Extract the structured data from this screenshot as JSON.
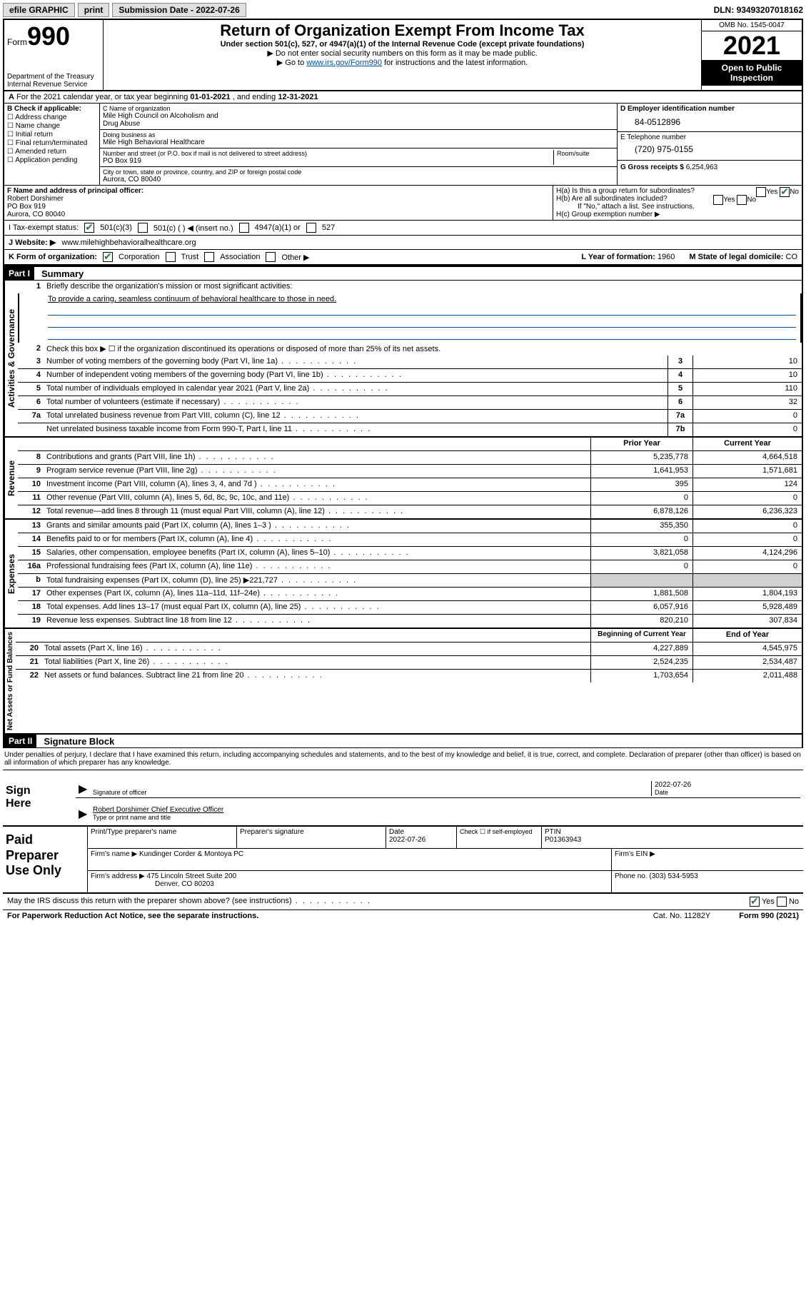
{
  "topbar": {
    "efile": "efile GRAPHIC",
    "print": "print",
    "sub_label": "Submission Date - ",
    "sub_date": "2022-07-26",
    "dln_label": "DLN: ",
    "dln": "93493207018162"
  },
  "header": {
    "form_word": "Form",
    "form_num": "990",
    "dept": "Department of the Treasury",
    "irs": "Internal Revenue Service",
    "title": "Return of Organization Exempt From Income Tax",
    "subtitle": "Under section 501(c), 527, or 4947(a)(1) of the Internal Revenue Code (except private foundations)",
    "note1": "▶ Do not enter social security numbers on this form as it may be made public.",
    "note2_a": "▶ Go to ",
    "note2_link": "www.irs.gov/Form990",
    "note2_b": " for instructions and the latest information.",
    "omb": "OMB No. 1545-0047",
    "year": "2021",
    "otp": "Open to Public Inspection"
  },
  "line_a": {
    "text_a": "For the 2021 calendar year, or tax year beginning ",
    "begin": "01-01-2021",
    "text_b": " , and ending ",
    "end": "12-31-2021"
  },
  "col_b": {
    "label": "B Check if applicable:",
    "items": [
      "Address change",
      "Name change",
      "Initial return",
      "Final return/terminated",
      "Amended return",
      "Application pending"
    ]
  },
  "col_c": {
    "name_lbl": "C Name of organization",
    "name1": "Mile High Council on Alcoholism and",
    "name2": "Drug Abuse",
    "dba_lbl": "Doing business as",
    "dba": "Mile High Behavioral Healthcare",
    "addr_lbl": "Number and street (or P.O. box if mail is not delivered to street address)",
    "rs_lbl": "Room/suite",
    "addr": "PO Box 919",
    "city_lbl": "City or town, state or province, country, and ZIP or foreign postal code",
    "city": "Aurora, CO  80040"
  },
  "col_d": {
    "ein_lbl": "D Employer identification number",
    "ein": "84-0512896",
    "tel_lbl": "E Telephone number",
    "tel": "(720) 975-0155",
    "gr_lbl": "G Gross receipts $ ",
    "gr": "6,254,963"
  },
  "col_f": {
    "lbl": "F Name and address of principal officer:",
    "name": "Robert Dorshimer",
    "addr1": "PO Box 919",
    "addr2": "Aurora, CO  80040"
  },
  "col_h": {
    "ha": "H(a)  Is this a group return for subordinates?",
    "hb": "H(b)  Are all subordinates included?",
    "hb_note": "If \"No,\" attach a list. See instructions.",
    "hc": "H(c)  Group exemption number ▶",
    "yes": "Yes",
    "no": "No"
  },
  "line_i": {
    "lbl": "I     Tax-exempt status:",
    "opt1": "501(c)(3)",
    "opt2": "501(c) (  ) ◀ (insert no.)",
    "opt3": "4947(a)(1) or",
    "opt4": "527"
  },
  "line_j": {
    "lbl": "J    Website: ▶ ",
    "val": "www.milehighbehavioralhealthcare.org"
  },
  "line_k": {
    "lbl": "K Form of organization:",
    "opts": [
      "Corporation",
      "Trust",
      "Association",
      "Other ▶"
    ],
    "l_lbl": "L Year of formation: ",
    "l_val": "1960",
    "m_lbl": "M State of legal domicile: ",
    "m_val": "CO"
  },
  "part1": {
    "hdr": "Part I",
    "title": "Summary",
    "vlabels": [
      "Activities & Governance",
      "Revenue",
      "Expenses",
      "Net Assets or Fund Balances"
    ],
    "line1_lbl": "Briefly describe the organization's mission or most significant activities:",
    "mission": "To provide a caring, seamless continuum of behavioral healthcare to those in need.",
    "line2": "Check this box ▶ ☐  if the organization discontinued its operations or disposed of more than 25% of its net assets.",
    "rows_gov": [
      {
        "n": "3",
        "d": "Number of voting members of the governing body (Part VI, line 1a)",
        "b": "3",
        "v": "10"
      },
      {
        "n": "4",
        "d": "Number of independent voting members of the governing body (Part VI, line 1b)",
        "b": "4",
        "v": "10"
      },
      {
        "n": "5",
        "d": "Total number of individuals employed in calendar year 2021 (Part V, line 2a)",
        "b": "5",
        "v": "110"
      },
      {
        "n": "6",
        "d": "Total number of volunteers (estimate if necessary)",
        "b": "6",
        "v": "32"
      },
      {
        "n": "7a",
        "d": "Total unrelated business revenue from Part VIII, column (C), line 12",
        "b": "7a",
        "v": "0"
      },
      {
        "n": "",
        "d": "Net unrelated business taxable income from Form 990-T, Part I, line 11",
        "b": "7b",
        "v": "0"
      }
    ],
    "col_hdr_prior": "Prior Year",
    "col_hdr_curr": "Current Year",
    "rows_rev": [
      {
        "n": "8",
        "d": "Contributions and grants (Part VIII, line 1h)",
        "p": "5,235,778",
        "c": "4,664,518"
      },
      {
        "n": "9",
        "d": "Program service revenue (Part VIII, line 2g)",
        "p": "1,641,953",
        "c": "1,571,681"
      },
      {
        "n": "10",
        "d": "Investment income (Part VIII, column (A), lines 3, 4, and 7d )",
        "p": "395",
        "c": "124"
      },
      {
        "n": "11",
        "d": "Other revenue (Part VIII, column (A), lines 5, 6d, 8c, 9c, 10c, and 11e)",
        "p": "0",
        "c": "0"
      },
      {
        "n": "12",
        "d": "Total revenue—add lines 8 through 11 (must equal Part VIII, column (A), line 12)",
        "p": "6,878,126",
        "c": "6,236,323"
      }
    ],
    "rows_exp": [
      {
        "n": "13",
        "d": "Grants and similar amounts paid (Part IX, column (A), lines 1–3 )",
        "p": "355,350",
        "c": "0"
      },
      {
        "n": "14",
        "d": "Benefits paid to or for members (Part IX, column (A), line 4)",
        "p": "0",
        "c": "0"
      },
      {
        "n": "15",
        "d": "Salaries, other compensation, employee benefits (Part IX, column (A), lines 5–10)",
        "p": "3,821,058",
        "c": "4,124,296"
      },
      {
        "n": "16a",
        "d": "Professional fundraising fees (Part IX, column (A), line 11e)",
        "p": "0",
        "c": "0"
      },
      {
        "n": "b",
        "d": "Total fundraising expenses (Part IX, column (D), line 25) ▶221,727",
        "p": "",
        "c": "",
        "shade": true
      },
      {
        "n": "17",
        "d": "Other expenses (Part IX, column (A), lines 11a–11d, 11f–24e)",
        "p": "1,881,508",
        "c": "1,804,193"
      },
      {
        "n": "18",
        "d": "Total expenses. Add lines 13–17 (must equal Part IX, column (A), line 25)",
        "p": "6,057,916",
        "c": "5,928,489"
      },
      {
        "n": "19",
        "d": "Revenue less expenses. Subtract line 18 from line 12",
        "p": "820,210",
        "c": "307,834"
      }
    ],
    "col_hdr_beg": "Beginning of Current Year",
    "col_hdr_end": "End of Year",
    "rows_net": [
      {
        "n": "20",
        "d": "Total assets (Part X, line 16)",
        "p": "4,227,889",
        "c": "4,545,975"
      },
      {
        "n": "21",
        "d": "Total liabilities (Part X, line 26)",
        "p": "2,524,235",
        "c": "2,534,487"
      },
      {
        "n": "22",
        "d": "Net assets or fund balances. Subtract line 21 from line 20",
        "p": "1,703,654",
        "c": "2,011,488"
      }
    ]
  },
  "part2": {
    "hdr": "Part II",
    "title": "Signature Block"
  },
  "penalties": "Under penalties of perjury, I declare that I have examined this return, including accompanying schedules and statements, and to the best of my knowledge and belief, it is true, correct, and complete. Declaration of preparer (other than officer) is based on all information of which preparer has any knowledge.",
  "sign": {
    "lbl": "Sign Here",
    "sig_lbl": "Signature of officer",
    "date_lbl": "Date",
    "date": "2022-07-26",
    "name": "Robert Dorshimer  Chief Executive Officer",
    "name_lbl": "Type or print name and title"
  },
  "prep": {
    "lbl": "Paid Preparer Use Only",
    "h1": "Print/Type preparer's name",
    "h2": "Preparer's signature",
    "h3": "Date",
    "h3v": "2022-07-26",
    "h4": "Check ☐ if self‑employed",
    "h5": "PTIN",
    "h5v": "P01363943",
    "firm_lbl": "Firm's name    ▶ ",
    "firm": "Kundinger Corder & Montoya PC",
    "ein_lbl": "Firm's EIN ▶",
    "addr_lbl": "Firm's address ▶ ",
    "addr1": "475 Lincoln Street Suite 200",
    "addr2": "Denver, CO  80203",
    "phone_lbl": "Phone no. ",
    "phone": "(303) 534-5953"
  },
  "discuss": {
    "q": "May the IRS discuss this return with the preparer shown above? (see instructions)",
    "yes": "Yes",
    "no": "No"
  },
  "footer": {
    "left": "For Paperwork Reduction Act Notice, see the separate instructions.",
    "mid": "Cat. No. 11282Y",
    "right": "Form 990 (2021)"
  }
}
